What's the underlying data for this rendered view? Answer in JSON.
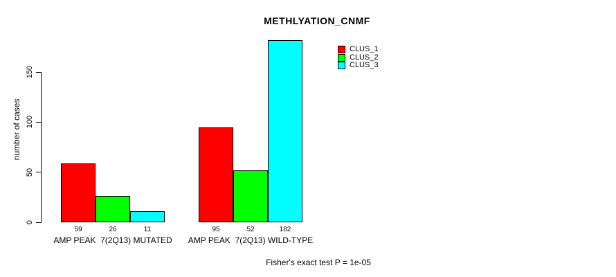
{
  "chart_data": {
    "type": "bar",
    "title": "METHLYATION_CNMF",
    "ylabel": "number of cases",
    "xlabel": "",
    "ylim": [
      0,
      185
    ],
    "yticks": [
      0,
      50,
      100,
      150
    ],
    "grid": false,
    "legend_position": "top-right-inside",
    "background_color": "#ffffff",
    "axis_color": "#000000",
    "bar_border_color": "#000000",
    "categories": [
      "AMP PEAK  7(2Q13) MUTATED",
      "AMP PEAK  7(2Q13) WILD-TYPE"
    ],
    "groups": [
      {
        "label": "AMP PEAK  7(2Q13) MUTATED"
      },
      {
        "label": "AMP PEAK  7(2Q13) WILD-TYPE"
      }
    ],
    "series": [
      {
        "name": "CLUS_1",
        "color": "#ff0000",
        "values": [
          59,
          95
        ]
      },
      {
        "name": "CLUS_2",
        "color": "#00ff00",
        "values": [
          26,
          52
        ]
      },
      {
        "name": "CLUS_3",
        "color": "#00ffff",
        "values": [
          11,
          182
        ]
      }
    ],
    "bar_value_labels": [
      [
        59,
        26,
        11
      ],
      [
        95,
        52,
        182
      ]
    ],
    "footer": "Fisher's exact test P = 1e-05"
  }
}
